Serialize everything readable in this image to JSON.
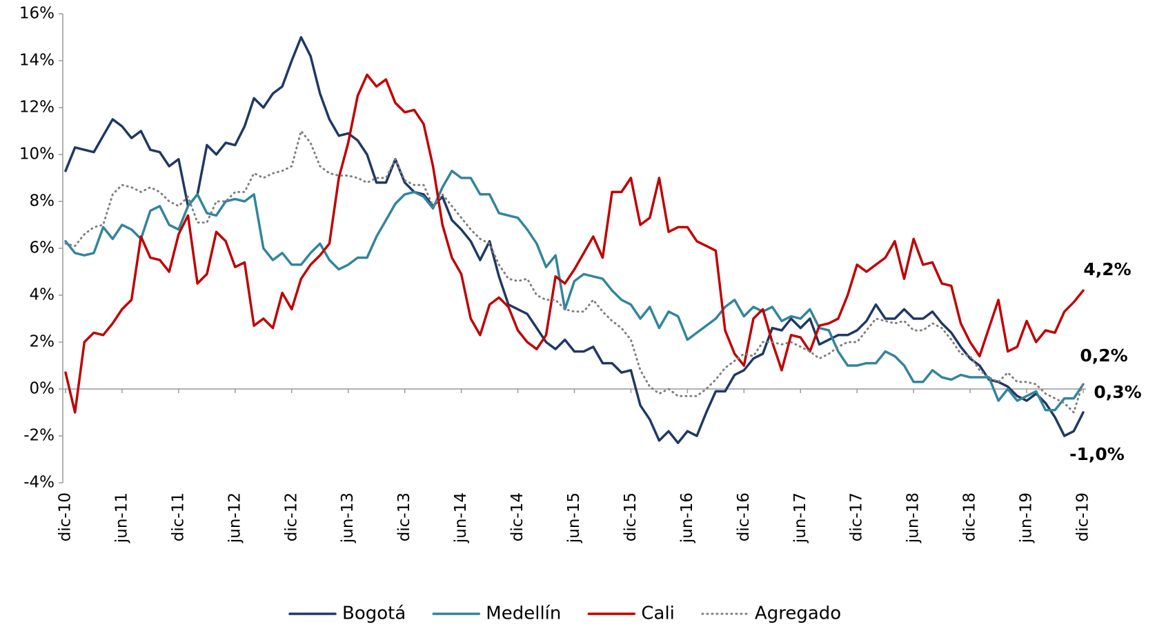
{
  "chart_data": {
    "type": "line",
    "categories": [
      "dic-10",
      null,
      null,
      null,
      null,
      null,
      "jun-11",
      null,
      null,
      null,
      null,
      null,
      "dic-11",
      null,
      null,
      null,
      null,
      null,
      "jun-12",
      null,
      null,
      null,
      null,
      null,
      "dic-12",
      null,
      null,
      null,
      null,
      null,
      "jun-13",
      null,
      null,
      null,
      null,
      null,
      "dic-13",
      null,
      null,
      null,
      null,
      null,
      "jun-14",
      null,
      null,
      null,
      null,
      null,
      "dic-14",
      null,
      null,
      null,
      null,
      null,
      "jun-15",
      null,
      null,
      null,
      null,
      null,
      "dic-15",
      null,
      null,
      null,
      null,
      null,
      "jun-16",
      null,
      null,
      null,
      null,
      null,
      "dic-16",
      null,
      null,
      null,
      null,
      null,
      "jun-17",
      null,
      null,
      null,
      null,
      null,
      "dic-17",
      null,
      null,
      null,
      null,
      null,
      "jun-18",
      null,
      null,
      null,
      null,
      null,
      "dic-18",
      null,
      null,
      null,
      null,
      null,
      "jun-19",
      null,
      null,
      null,
      null,
      null,
      "dic-19"
    ],
    "series": [
      {
        "name": "Bogotá",
        "color": "#1f3864",
        "style": "solid",
        "end_label": "-1,0%",
        "values": [
          9.3,
          10.3,
          10.2,
          10.1,
          10.8,
          11.5,
          11.2,
          10.7,
          11.0,
          10.2,
          10.1,
          9.5,
          9.8,
          7.8,
          8.3,
          10.4,
          10.0,
          10.5,
          10.4,
          11.2,
          12.4,
          12.0,
          12.6,
          12.9,
          14.0,
          15.0,
          14.2,
          12.6,
          11.5,
          10.8,
          10.9,
          10.6,
          10.0,
          8.8,
          8.8,
          9.8,
          8.8,
          8.4,
          8.3,
          7.8,
          8.2,
          7.2,
          6.8,
          6.3,
          5.5,
          6.3,
          4.8,
          3.6,
          3.4,
          3.2,
          2.6,
          2.0,
          1.7,
          2.1,
          1.6,
          1.6,
          1.8,
          1.1,
          1.1,
          0.7,
          0.8,
          -0.7,
          -1.3,
          -2.2,
          -1.8,
          -2.3,
          -1.8,
          -2.0,
          -1.0,
          -0.1,
          -0.1,
          0.6,
          0.8,
          1.3,
          1.5,
          2.6,
          2.5,
          3.0,
          2.6,
          3.0,
          1.9,
          2.1,
          2.3,
          2.3,
          2.5,
          2.9,
          3.6,
          3.0,
          3.0,
          3.4,
          3.0,
          3.0,
          3.3,
          2.8,
          2.4,
          1.8,
          1.3,
          1.0,
          0.4,
          0.3,
          0.1,
          -0.3,
          -0.5,
          -0.2,
          -0.6,
          -1.2,
          -2.0,
          -1.8,
          -1.0
        ]
      },
      {
        "name": "Medellín",
        "color": "#31859c",
        "style": "solid",
        "end_label": "0,2%",
        "values": [
          6.3,
          5.8,
          5.7,
          5.8,
          6.9,
          6.4,
          7.0,
          6.8,
          6.4,
          7.6,
          7.8,
          7.0,
          6.8,
          7.8,
          8.3,
          7.5,
          7.4,
          8.0,
          8.1,
          8.0,
          8.3,
          6.0,
          5.5,
          5.8,
          5.3,
          5.3,
          5.8,
          6.2,
          5.5,
          5.1,
          5.3,
          5.6,
          5.6,
          6.5,
          7.2,
          7.9,
          8.3,
          8.4,
          8.2,
          7.7,
          8.6,
          9.3,
          9.0,
          9.0,
          8.3,
          8.3,
          7.5,
          7.4,
          7.3,
          6.8,
          6.2,
          5.2,
          5.7,
          3.4,
          4.6,
          4.9,
          4.8,
          4.7,
          4.2,
          3.8,
          3.6,
          3.0,
          3.5,
          2.6,
          3.3,
          3.1,
          2.1,
          2.4,
          2.7,
          3.0,
          3.5,
          3.8,
          3.1,
          3.5,
          3.3,
          3.5,
          2.9,
          3.1,
          3.0,
          3.4,
          2.6,
          2.5,
          1.6,
          1.0,
          1.0,
          1.1,
          1.1,
          1.6,
          1.4,
          1.0,
          0.3,
          0.3,
          0.8,
          0.5,
          0.4,
          0.6,
          0.5,
          0.5,
          0.5,
          -0.5,
          0.0,
          -0.5,
          -0.3,
          -0.1,
          -0.9,
          -0.9,
          -0.4,
          -0.4,
          0.2
        ]
      },
      {
        "name": "Cali",
        "color": "#c00000",
        "style": "solid",
        "end_label": "4,2%",
        "values": [
          0.7,
          -1.0,
          2.0,
          2.4,
          2.3,
          2.8,
          3.4,
          3.8,
          6.5,
          5.6,
          5.5,
          5.0,
          6.6,
          7.4,
          4.5,
          4.9,
          6.7,
          6.3,
          5.2,
          5.4,
          2.7,
          3.0,
          2.6,
          4.1,
          3.4,
          4.7,
          5.3,
          5.7,
          6.2,
          9.0,
          10.5,
          12.5,
          13.4,
          12.9,
          13.2,
          12.2,
          11.8,
          11.9,
          11.3,
          9.5,
          7.0,
          5.6,
          4.9,
          3.0,
          2.3,
          3.6,
          3.9,
          3.5,
          2.5,
          2.0,
          1.7,
          2.3,
          4.8,
          4.5,
          5.1,
          5.8,
          6.5,
          5.6,
          8.4,
          8.4,
          9.0,
          7.0,
          7.3,
          9.0,
          6.7,
          6.9,
          6.9,
          6.3,
          6.1,
          5.9,
          2.5,
          1.5,
          1.0,
          3.0,
          3.4,
          2.0,
          0.8,
          2.3,
          2.2,
          1.6,
          2.7,
          2.8,
          3.0,
          4.0,
          5.3,
          5.0,
          5.3,
          5.6,
          6.3,
          4.7,
          6.4,
          5.3,
          5.4,
          4.5,
          4.4,
          2.8,
          2.0,
          1.4,
          2.6,
          3.8,
          1.6,
          1.8,
          2.9,
          2.0,
          2.5,
          2.4,
          3.3,
          3.7,
          4.2
        ]
      },
      {
        "name": "Agregado",
        "color": "#7f7f7f",
        "style": "dotted",
        "end_label": "0,3%",
        "values": [
          6.2,
          6.1,
          6.6,
          6.9,
          7.0,
          8.3,
          8.7,
          8.6,
          8.4,
          8.6,
          8.4,
          8.0,
          7.8,
          8.2,
          7.1,
          7.1,
          8.0,
          8.0,
          8.4,
          8.4,
          9.2,
          9.0,
          9.2,
          9.3,
          9.5,
          11.0,
          10.5,
          9.5,
          9.2,
          9.1,
          9.1,
          9.0,
          8.8,
          9.0,
          9.0,
          9.8,
          8.9,
          8.7,
          8.7,
          7.8,
          8.3,
          7.8,
          7.3,
          6.8,
          6.4,
          6.2,
          5.3,
          4.7,
          4.6,
          4.7,
          4.0,
          3.8,
          3.8,
          3.4,
          3.3,
          3.3,
          3.8,
          3.3,
          2.9,
          2.6,
          2.1,
          0.8,
          0.1,
          -0.2,
          0.0,
          -0.3,
          -0.3,
          -0.3,
          0.0,
          0.4,
          0.9,
          1.2,
          1.5,
          1.4,
          2.0,
          2.0,
          1.9,
          2.0,
          1.8,
          1.6,
          1.3,
          1.5,
          1.8,
          2.0,
          2.0,
          2.5,
          3.0,
          2.9,
          2.8,
          2.9,
          2.5,
          2.5,
          2.8,
          2.6,
          2.1,
          1.5,
          1.4,
          0.8,
          0.5,
          0.3,
          0.7,
          0.3,
          0.3,
          0.2,
          -0.2,
          -0.4,
          -0.6,
          -1.0,
          0.3
        ]
      }
    ],
    "ylim": [
      -4,
      16
    ],
    "yticks": [
      {
        "value": -4,
        "label": "-4%"
      },
      {
        "value": -2,
        "label": "-2%"
      },
      {
        "value": 0,
        "label": "0%"
      },
      {
        "value": 2,
        "label": "2%"
      },
      {
        "value": 4,
        "label": "4%"
      },
      {
        "value": 6,
        "label": "6%"
      },
      {
        "value": 8,
        "label": "8%"
      },
      {
        "value": 10,
        "label": "10%"
      },
      {
        "value": 12,
        "label": "12%"
      },
      {
        "value": 14,
        "label": "14%"
      },
      {
        "value": 16,
        "label": "16%"
      }
    ],
    "grid": false,
    "legend": "bottom"
  }
}
